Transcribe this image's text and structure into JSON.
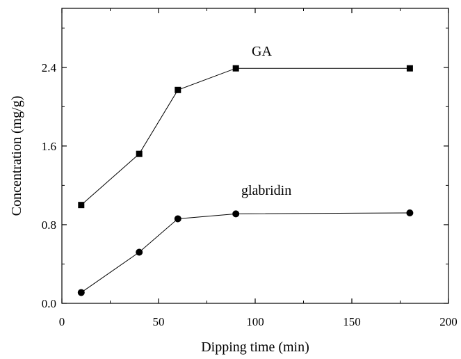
{
  "chart_data": {
    "type": "line",
    "title": "",
    "xlabel": "Dipping time (min)",
    "ylabel": "Concentration (mg/g)",
    "xlim": [
      0,
      200
    ],
    "ylim": [
      0,
      3.0
    ],
    "xticks": [
      0,
      50,
      100,
      150,
      200
    ],
    "yticks": [
      0.0,
      0.8,
      1.6,
      2.4
    ],
    "xtick_labels": [
      "0",
      "50",
      "100",
      "150",
      "200"
    ],
    "ytick_labels": [
      "0.0",
      "0.8",
      "1.6",
      "2.4"
    ],
    "grid": false,
    "legend": "none",
    "x": [
      10,
      40,
      60,
      90,
      180
    ],
    "series": [
      {
        "name": "GA",
        "marker": "square",
        "values": [
          1.0,
          1.52,
          2.17,
          2.39,
          2.39
        ]
      },
      {
        "name": "glabridin",
        "marker": "circle",
        "values": [
          0.11,
          0.52,
          0.86,
          0.91,
          0.92
        ]
      }
    ]
  }
}
